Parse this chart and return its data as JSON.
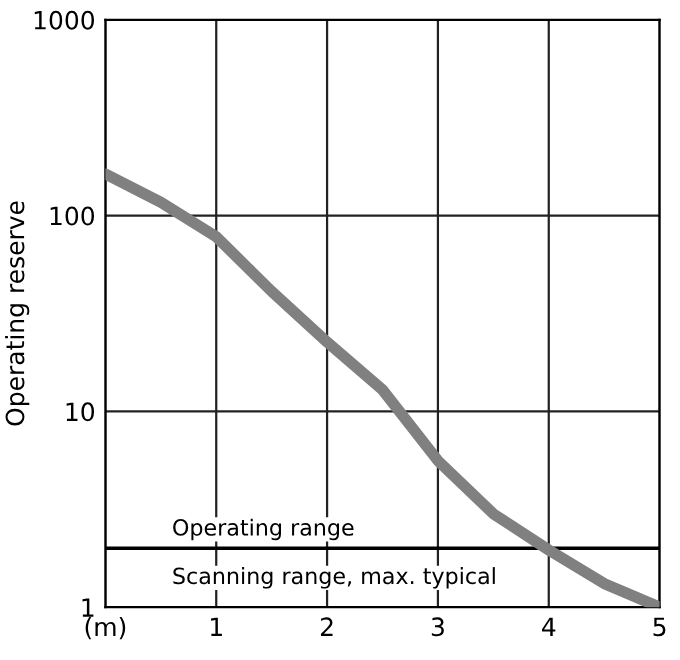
{
  "chart_data": {
    "type": "line",
    "ylabel": "Operating reserve",
    "log": "y",
    "x": [
      0,
      0.5,
      1,
      1.5,
      2,
      2.5,
      3,
      3.5,
      4,
      4.5,
      5
    ],
    "series": [
      {
        "color": "#808080",
        "values": [
          163,
          117,
          78,
          41,
          22.6,
          12.9,
          5.6,
          3.0,
          1.96,
          1.32,
          1.0
        ]
      }
    ],
    "xlim": [
      0,
      5
    ],
    "xticks": [
      {
        "value": 0,
        "label": "(m)"
      },
      1,
      2,
      3,
      4,
      5
    ],
    "ylim": [
      1,
      1000
    ],
    "yticks": [
      1,
      10,
      100,
      1000
    ],
    "ref_lines": [
      {
        "axis": "y",
        "value": 2,
        "label": "Operating range",
        "color": "#000000"
      }
    ],
    "annotations": [
      "Scanning range, max. typical"
    ],
    "grid": true,
    "legend": false
  }
}
